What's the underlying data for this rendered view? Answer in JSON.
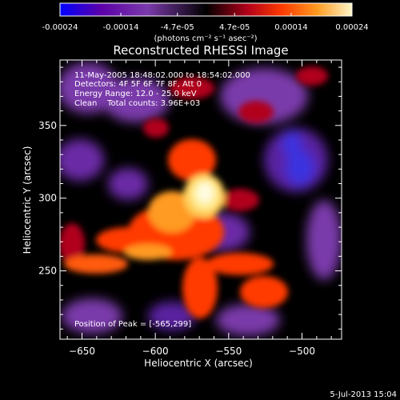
{
  "colorbar": {
    "tick_labels": [
      "-0.00024",
      "-0.00014",
      "-4.7e-05",
      "4.7e-05",
      "0.00014",
      "0.00024"
    ],
    "tick_values": [
      -0.00024,
      -0.00014,
      -4.7e-05,
      4.7e-05,
      0.00014,
      0.00024
    ],
    "range": [
      -0.00024,
      0.00024
    ],
    "units_label": "(photons cm⁻² s⁻¹ asec⁻²)",
    "colormap": [
      "#0000ff",
      "#5c00a8",
      "#7a3aaa",
      "#000000",
      "#b0001a",
      "#ff3a00",
      "#ff9a20",
      "#fff6c8"
    ]
  },
  "title": "Reconstructed RHESSI Image",
  "annotations": {
    "time_range": "11-May-2005 18:48:02.000 to 18:54:02.000",
    "detectors": "Detectors: 4F 5F 6F 7F 8F, Att 0",
    "energy_range": "Energy Range: 12.0 - 25.0 keV",
    "clean": "Clean    Total counts: 3.96E+03",
    "peak_position": "Position of Peak = [-565,299]"
  },
  "x_axis": {
    "label": "Heliocentric X (arcsec)",
    "range": [
      -665,
      -473
    ],
    "tick_values": [
      -650,
      -600,
      -550,
      -500
    ],
    "tick_labels": [
      "−650",
      "−600",
      "−550",
      "−500"
    ]
  },
  "y_axis": {
    "label": "Heliocentric Y (arcsec)",
    "range": [
      203,
      395
    ],
    "tick_values": [
      250,
      300,
      350
    ],
    "tick_labels": [
      "250",
      "300",
      "350"
    ]
  },
  "peak": {
    "x": -565,
    "y": 299
  },
  "footer_date": "5-Jul-2013 15:04"
}
